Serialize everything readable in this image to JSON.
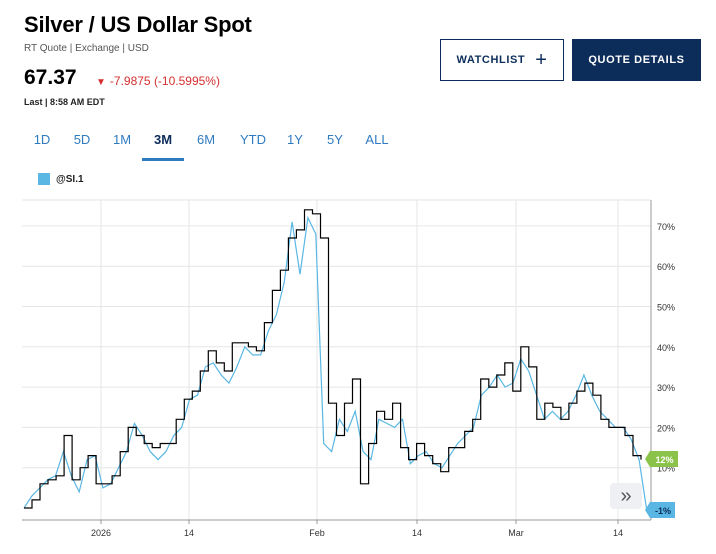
{
  "header": {
    "title": "Silver / US Dollar Spot",
    "subtitle": "RT Quote | Exchange | USD",
    "price": "67.37",
    "change": "-7.9875 (-10.5995%)",
    "last": "Last | 8:58 AM EDT"
  },
  "buttons": {
    "watchlist": "WATCHLIST",
    "quote_details": "QUOTE DETAILS"
  },
  "tabs": [
    "1D",
    "5D",
    "1M",
    "3M",
    "6M",
    "YTD",
    "1Y",
    "5Y",
    "ALL"
  ],
  "active_tab": "3M",
  "colors": {
    "primary": "#0c2d5a",
    "accent": "#2f7bc0",
    "series": "#5ab7e3",
    "down": "#d32f2f",
    "badge_green": "#8bc34a"
  },
  "chart_data": {
    "type": "line",
    "legend": [
      "@SI.1"
    ],
    "x_ticks": [
      "2026",
      "14",
      "Feb",
      "14",
      "Mar",
      "14"
    ],
    "y_ticks": [
      "70%",
      "60%",
      "50%",
      "40%",
      "30%",
      "20%",
      "10%"
    ],
    "ylim": [
      -1,
      72
    ],
    "grid": true,
    "badges": {
      "black": "12%",
      "blue": "-1%"
    },
    "series": [
      {
        "color": "#5ab7e3",
        "values": [
          0,
          3,
          5,
          7,
          8,
          14,
          8,
          4,
          12,
          13,
          5,
          6,
          10,
          14,
          21,
          18,
          14,
          12,
          14,
          18,
          20,
          27,
          28,
          35,
          36,
          33,
          31,
          35,
          40,
          38,
          38,
          44,
          48,
          56,
          71,
          58,
          72,
          68,
          16,
          14,
          22,
          19,
          24,
          14,
          12,
          22,
          21,
          20,
          22,
          11,
          13,
          14,
          11,
          10,
          13,
          16,
          18,
          20,
          28,
          30,
          33,
          30,
          31,
          37,
          34,
          28,
          22,
          24,
          22,
          24,
          28,
          33,
          28,
          24,
          22,
          20,
          20,
          17,
          12,
          -1
        ]
      },
      {
        "color": "#000000",
        "values": [
          0,
          2,
          6,
          7,
          8,
          18,
          7,
          10,
          13,
          6,
          6,
          8,
          14,
          20,
          18,
          16,
          15,
          16,
          16,
          22,
          27,
          29,
          34,
          39,
          36,
          34,
          41,
          41,
          40,
          39,
          46,
          54,
          59,
          67,
          69,
          74,
          73,
          67,
          26,
          18,
          26,
          32,
          6,
          16,
          24,
          22,
          26,
          15,
          12,
          16,
          13,
          11,
          9,
          15,
          15,
          19,
          22,
          32,
          30,
          33,
          36,
          29,
          40,
          35,
          22,
          26,
          25,
          22,
          26,
          29,
          31,
          28,
          22,
          20,
          20,
          18,
          13,
          12
        ]
      }
    ]
  }
}
